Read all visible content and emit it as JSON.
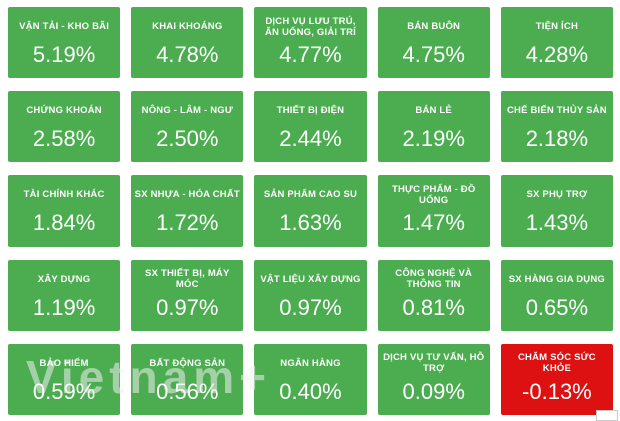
{
  "watermark": "Vietnam+",
  "colors": {
    "positive": "#4CAC50",
    "negative": "#DD1111",
    "background": "#FFFFFF",
    "text": "#FFFFFF",
    "watermark": "#F0F0F0"
  },
  "tiles": [
    {
      "label": "VẬN TẢI - KHO BÃI",
      "value": "5.19%",
      "direction": "up"
    },
    {
      "label": "KHAI KHOÁNG",
      "value": "4.78%",
      "direction": "up"
    },
    {
      "label": "DỊCH VỤ LƯU TRÚ, ĂN UỐNG, GIẢI TRÍ",
      "value": "4.77%",
      "direction": "up"
    },
    {
      "label": "BÁN BUÔN",
      "value": "4.75%",
      "direction": "up"
    },
    {
      "label": "TIỆN ÍCH",
      "value": "4.28%",
      "direction": "up"
    },
    {
      "label": "CHỨNG KHOÁN",
      "value": "2.58%",
      "direction": "up"
    },
    {
      "label": "NÔNG - LÂM - NGƯ",
      "value": "2.50%",
      "direction": "up"
    },
    {
      "label": "THIẾT BỊ ĐIỆN",
      "value": "2.44%",
      "direction": "up"
    },
    {
      "label": "BÁN LẺ",
      "value": "2.19%",
      "direction": "up"
    },
    {
      "label": "CHẾ BIẾN THỦY SẢN",
      "value": "2.18%",
      "direction": "up"
    },
    {
      "label": "TÀI CHÍNH KHÁC",
      "value": "1.84%",
      "direction": "up"
    },
    {
      "label": "SX NHỰA - HÓA CHẤT",
      "value": "1.72%",
      "direction": "up"
    },
    {
      "label": "SẢN PHẨM CAO SU",
      "value": "1.63%",
      "direction": "up"
    },
    {
      "label": "THỰC PHẨM - ĐỒ UỐNG",
      "value": "1.47%",
      "direction": "up"
    },
    {
      "label": "SX PHỤ TRỢ",
      "value": "1.43%",
      "direction": "up"
    },
    {
      "label": "XÂY DỰNG",
      "value": "1.19%",
      "direction": "up"
    },
    {
      "label": "SX THIẾT BỊ, MÁY MÓC",
      "value": "0.97%",
      "direction": "up"
    },
    {
      "label": "VẬT LIỆU XÂY DỰNG",
      "value": "0.97%",
      "direction": "up"
    },
    {
      "label": "CÔNG NGHỆ VÀ THÔNG TIN",
      "value": "0.81%",
      "direction": "up"
    },
    {
      "label": "SX HÀNG GIA DỤNG",
      "value": "0.65%",
      "direction": "up"
    },
    {
      "label": "BẢO HIỂM",
      "value": "0.59%",
      "direction": "up"
    },
    {
      "label": "BẤT ĐỘNG SẢN",
      "value": "0.56%",
      "direction": "up"
    },
    {
      "label": "NGÂN HÀNG",
      "value": "0.40%",
      "direction": "up"
    },
    {
      "label": "DỊCH VỤ TƯ VẤN, HỖ TRỢ",
      "value": "0.09%",
      "direction": "up"
    },
    {
      "label": "CHĂM SÓC SỨC KHỎE",
      "value": "-0.13%",
      "direction": "down"
    }
  ],
  "chart_data": {
    "type": "heatmap",
    "title": "",
    "unit": "%",
    "layout": "5x5 grid, row-major, values sorted descending; green = positive change, red = negative change",
    "legend_position": "none",
    "categories": [
      "VẬN TẢI - KHO BÃI",
      "KHAI KHOÁNG",
      "DỊCH VỤ LƯU TRÚ, ĂN UỐNG, GIẢI TRÍ",
      "BÁN BUÔN",
      "TIỆN ÍCH",
      "CHỨNG KHOÁN",
      "NÔNG - LÂM - NGƯ",
      "THIẾT BỊ ĐIỆN",
      "BÁN LẺ",
      "CHẾ BIẾN THỦY SẢN",
      "TÀI CHÍNH KHÁC",
      "SX NHỰA - HÓA CHẤT",
      "SẢN PHẨM CAO SU",
      "THỰC PHẨM - ĐỒ UỐNG",
      "SX PHỤ TRỢ",
      "XÂY DỰNG",
      "SX THIẾT BỊ, MÁY MÓC",
      "VẬT LIỆU XÂY DỰNG",
      "CÔNG NGHỆ VÀ THÔNG TIN",
      "SX HÀNG GIA DỤNG",
      "BẢO HIỂM",
      "BẤT ĐỘNG SẢN",
      "NGÂN HÀNG",
      "DỊCH VỤ TƯ VẤN, HỖ TRỢ",
      "CHĂM SÓC SỨC KHỎE"
    ],
    "values": [
      5.19,
      4.78,
      4.77,
      4.75,
      4.28,
      2.58,
      2.5,
      2.44,
      2.19,
      2.18,
      1.84,
      1.72,
      1.63,
      1.47,
      1.43,
      1.19,
      0.97,
      0.97,
      0.81,
      0.65,
      0.59,
      0.56,
      0.4,
      0.09,
      -0.13
    ],
    "positive_color": "#4CAC50",
    "negative_color": "#DD1111"
  }
}
